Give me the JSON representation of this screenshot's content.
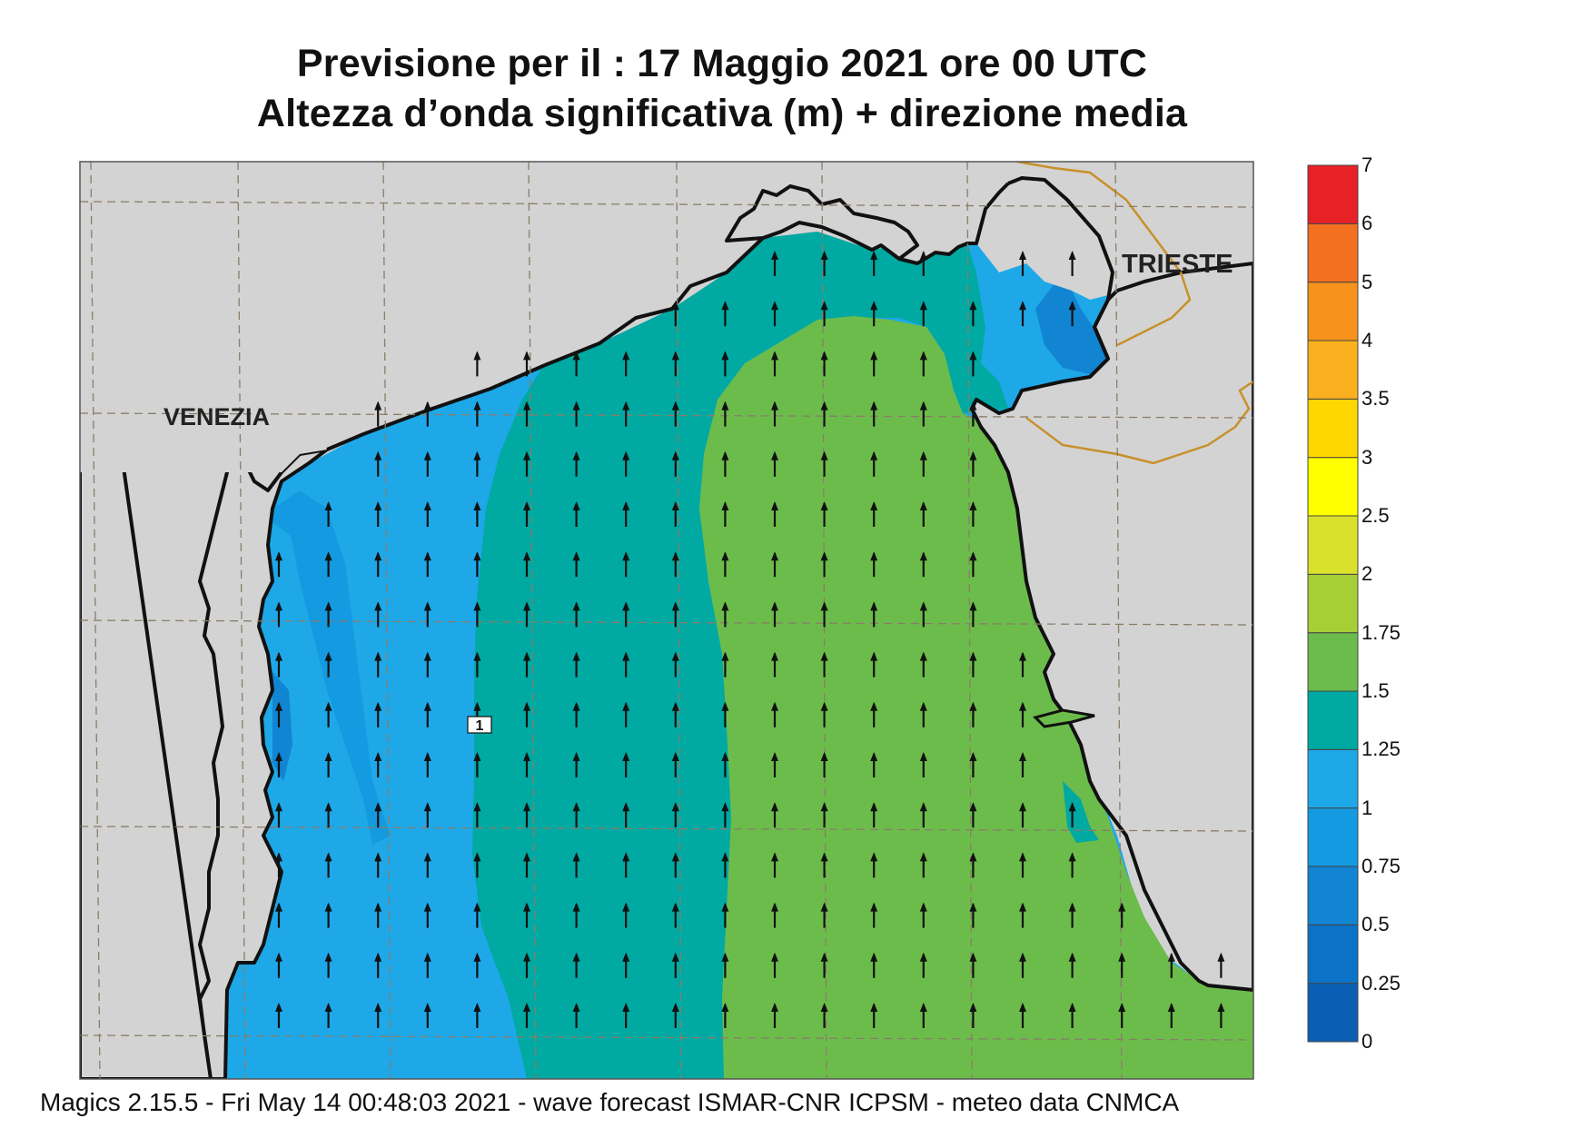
{
  "header": {
    "line1": "Previsione per il  :  17   Maggio  2021   ore 00 UTC",
    "line2": "Altezza d’onda significativa (m) + direzione media"
  },
  "map": {
    "city_labels": [
      "VENEZIA",
      "TRIESTE"
    ],
    "contour_label": "1",
    "land_color": "#d3d3d3",
    "coast_color": "#111111",
    "border_color": "#c8902a",
    "arrow_direction": "north"
  },
  "colorbar": {
    "levels": [
      {
        "label": "0",
        "color": "#0a5fb4"
      },
      {
        "label": "0.25",
        "color": "#0b73c7"
      },
      {
        "label": "0.5",
        "color": "#1184d2"
      },
      {
        "label": "0.75",
        "color": "#139ae0"
      },
      {
        "label": "1",
        "color": "#1ea8e8"
      },
      {
        "label": "1.25",
        "color": "#00a9a2"
      },
      {
        "label": "1.5",
        "color": "#6cbc4c"
      },
      {
        "label": "1.75",
        "color": "#a6cf36"
      },
      {
        "label": "2",
        "color": "#d9e12a"
      },
      {
        "label": "2.5",
        "color": "#ffff00"
      },
      {
        "label": "3",
        "color": "#ffd700"
      },
      {
        "label": "3.5",
        "color": "#fbb11f"
      },
      {
        "label": "4",
        "color": "#f7931d"
      },
      {
        "label": "5",
        "color": "#f37021"
      },
      {
        "label": "6",
        "color": "#e82127"
      },
      {
        "label": "7",
        "color": "#ee1765"
      }
    ]
  },
  "footer": {
    "text": "Magics 2.15.5 - Fri May 14 00:48:03 2021 - wave forecast  ISMAR-CNR  ICPSM - meteo data   CNMCA"
  }
}
